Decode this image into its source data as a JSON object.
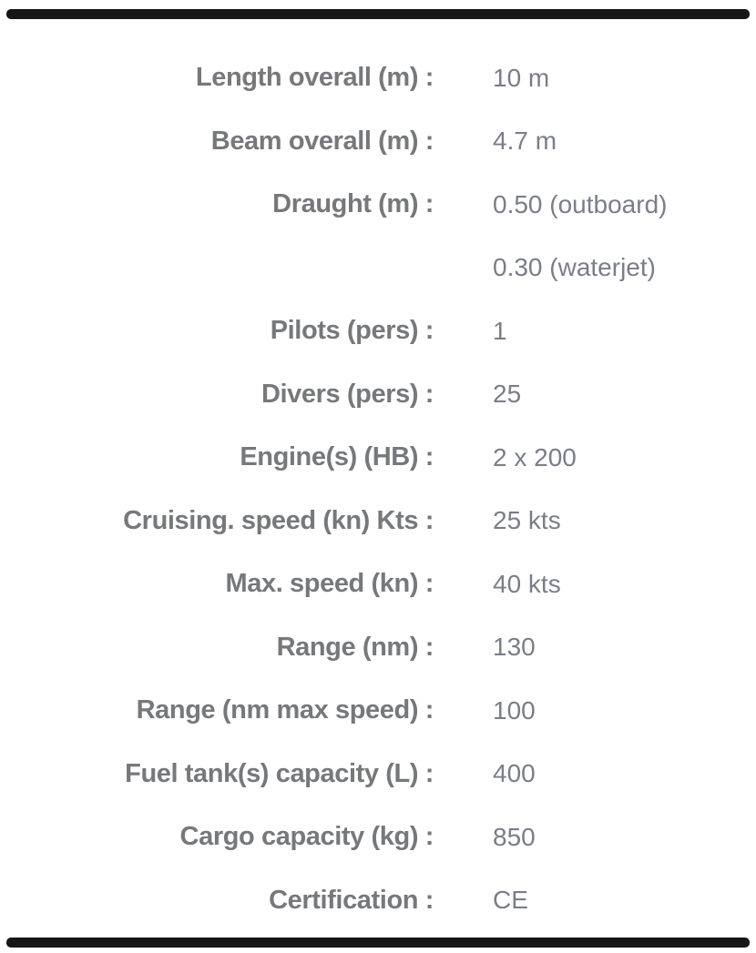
{
  "page": {
    "background": "#ffffff",
    "divider_color": "#161616",
    "label_color": "#76787b",
    "value_color": "#7a7e88"
  },
  "spec_table": {
    "rows": [
      {
        "label": "Length overall (m) :",
        "value": "10 m"
      },
      {
        "label": "Beam overall (m) :",
        "value": "4.7 m"
      },
      {
        "label": "Draught (m) :",
        "value": "0.50 (outboard)"
      },
      {
        "label": "",
        "value": "0.30 (waterjet)"
      },
      {
        "label": "Pilots (pers) :",
        "value": "1"
      },
      {
        "label": "Divers (pers) :",
        "value": "25"
      },
      {
        "label": "Engine(s) (HB) :",
        "value": "2 x 200"
      },
      {
        "label": "Cruising. speed (kn) Kts :",
        "value": "25 kts"
      },
      {
        "label": "Max. speed (kn) :",
        "value": "40 kts"
      },
      {
        "label": "Range (nm) :",
        "value": "130"
      },
      {
        "label": "Range (nm max speed) :",
        "value": "100"
      },
      {
        "label": "Fuel tank(s) capacity (L) :",
        "value": "400"
      },
      {
        "label": "Cargo capacity (kg) :",
        "value": "850"
      },
      {
        "label": "Certification :",
        "value": "CE"
      }
    ]
  }
}
